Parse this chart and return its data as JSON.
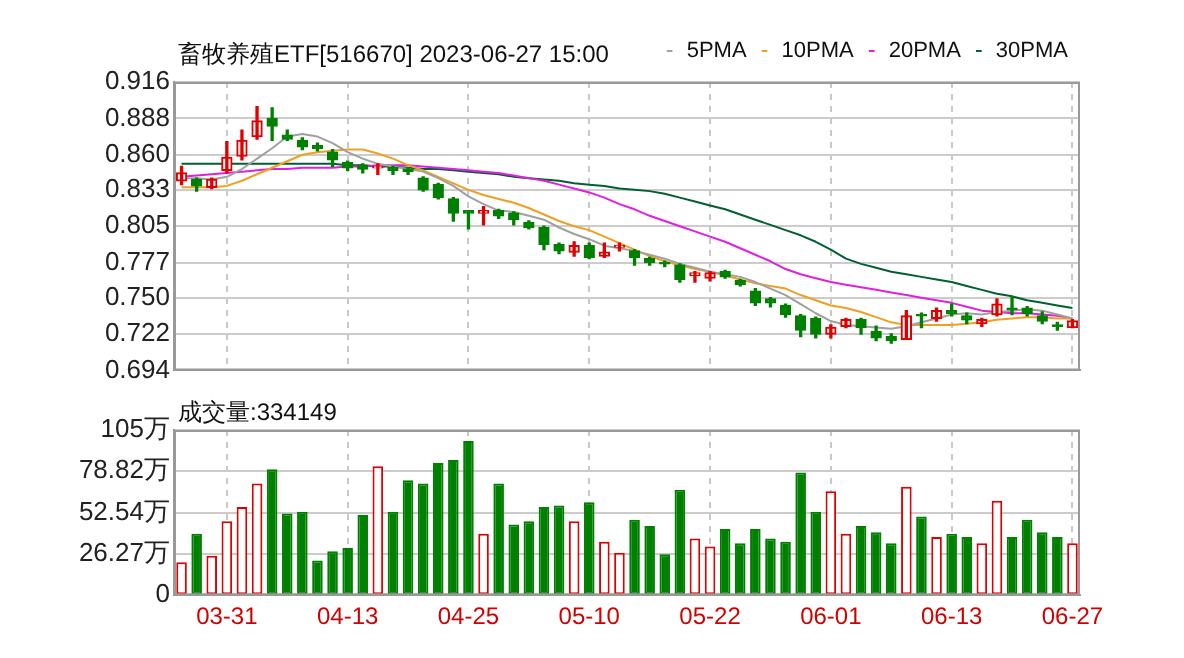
{
  "chart_data": [
    {
      "type": "candlestick",
      "title": "畜牧养殖ETF[516670] 2023-06-27 15:00",
      "categories": [
        null,
        null,
        null,
        null,
        null,
        null,
        null,
        null,
        null,
        null,
        null,
        null,
        null,
        null,
        null,
        null,
        null,
        null,
        null,
        null,
        null,
        null,
        null,
        null,
        null,
        null,
        null,
        null,
        null,
        null,
        null,
        null,
        null,
        null,
        null,
        null,
        null,
        null,
        null,
        null,
        null,
        null,
        null,
        null,
        null,
        null,
        null,
        null,
        null,
        null,
        null,
        null,
        null,
        null,
        null,
        null,
        null,
        null,
        null,
        null
      ],
      "ohlc": [
        [
          0.84,
          0.851,
          0.837,
          0.846
        ],
        [
          0.841,
          0.842,
          0.832,
          0.836
        ],
        [
          0.835,
          0.842,
          0.834,
          0.841
        ],
        [
          0.848,
          0.87,
          0.846,
          0.858
        ],
        [
          0.859,
          0.879,
          0.856,
          0.871
        ],
        [
          0.874,
          0.897,
          0.872,
          0.886
        ],
        [
          0.888,
          0.896,
          0.871,
          0.882
        ],
        [
          0.875,
          0.879,
          0.871,
          0.872
        ],
        [
          0.871,
          0.873,
          0.864,
          0.866
        ],
        [
          0.867,
          0.869,
          0.863,
          0.865
        ],
        [
          0.862,
          0.864,
          0.851,
          0.856
        ],
        [
          0.854,
          0.855,
          0.848,
          0.85
        ],
        [
          0.852,
          0.853,
          0.846,
          0.849
        ],
        [
          0.85,
          0.853,
          0.845,
          0.851
        ],
        [
          0.85,
          0.851,
          0.845,
          0.848
        ],
        [
          0.849,
          0.85,
          0.845,
          0.847
        ],
        [
          0.842,
          0.843,
          0.832,
          0.833
        ],
        [
          0.837,
          0.838,
          0.826,
          0.827
        ],
        [
          0.826,
          0.827,
          0.809,
          0.815
        ],
        [
          0.817,
          0.817,
          0.803,
          0.815
        ],
        [
          0.815,
          0.82,
          0.806,
          0.817
        ],
        [
          0.817,
          0.818,
          0.811,
          0.813
        ],
        [
          0.815,
          0.816,
          0.806,
          0.81
        ],
        [
          0.808,
          0.809,
          0.803,
          0.804
        ],
        [
          0.804,
          0.805,
          0.787,
          0.791
        ],
        [
          0.791,
          0.792,
          0.784,
          0.786
        ],
        [
          0.785,
          0.793,
          0.782,
          0.79
        ],
        [
          0.79,
          0.792,
          0.78,
          0.781
        ],
        [
          0.782,
          0.792,
          0.781,
          0.785
        ],
        [
          0.789,
          0.792,
          0.786,
          0.79
        ],
        [
          0.786,
          0.787,
          0.775,
          0.781
        ],
        [
          0.78,
          0.781,
          0.775,
          0.777
        ],
        [
          0.777,
          0.778,
          0.774,
          0.776
        ],
        [
          0.775,
          0.776,
          0.762,
          0.764
        ],
        [
          0.767,
          0.77,
          0.762,
          0.769
        ],
        [
          0.765,
          0.77,
          0.763,
          0.769
        ],
        [
          0.77,
          0.771,
          0.765,
          0.766
        ],
        [
          0.763,
          0.764,
          0.759,
          0.76
        ],
        [
          0.755,
          0.757,
          0.744,
          0.746
        ],
        [
          0.749,
          0.75,
          0.743,
          0.746
        ],
        [
          0.744,
          0.745,
          0.735,
          0.737
        ],
        [
          0.736,
          0.737,
          0.72,
          0.725
        ],
        [
          0.734,
          0.735,
          0.719,
          0.722
        ],
        [
          0.722,
          0.729,
          0.719,
          0.727
        ],
        [
          0.728,
          0.734,
          0.727,
          0.733
        ],
        [
          0.733,
          0.734,
          0.722,
          0.727
        ],
        [
          0.724,
          0.728,
          0.717,
          0.719
        ],
        [
          0.72,
          0.722,
          0.715,
          0.717
        ],
        [
          0.718,
          0.74,
          0.718,
          0.736
        ],
        [
          0.737,
          0.738,
          0.727,
          0.736
        ],
        [
          0.734,
          0.742,
          0.732,
          0.74
        ],
        [
          0.74,
          0.745,
          0.736,
          0.738
        ],
        [
          0.736,
          0.738,
          0.73,
          0.733
        ],
        [
          0.73,
          0.734,
          0.728,
          0.733
        ],
        [
          0.737,
          0.749,
          0.736,
          0.745
        ],
        [
          0.742,
          0.751,
          0.737,
          0.741
        ],
        [
          0.742,
          0.743,
          0.736,
          0.738
        ],
        [
          0.736,
          0.739,
          0.73,
          0.732
        ],
        [
          0.729,
          0.731,
          0.725,
          0.728
        ],
        [
          0.727,
          0.733,
          0.727,
          0.732
        ]
      ],
      "colors": [
        "#e00000",
        "#008000",
        "#e00000",
        "#e00000",
        "#e00000",
        "#e00000",
        "#008000",
        "#008000",
        "#008000",
        "#008000",
        "#008000",
        "#008000",
        "#008000",
        "#e00000",
        "#008000",
        "#008000",
        "#008000",
        "#008000",
        "#008000",
        "#008000",
        "#e00000",
        "#008000",
        "#008000",
        "#008000",
        "#008000",
        "#008000",
        "#e00000",
        "#008000",
        "#e00000",
        "#e00000",
        "#008000",
        "#008000",
        "#008000",
        "#008000",
        "#e00000",
        "#e00000",
        "#008000",
        "#008000",
        "#008000",
        "#008000",
        "#008000",
        "#008000",
        "#008000",
        "#e00000",
        "#e00000",
        "#008000",
        "#008000",
        "#008000",
        "#e00000",
        "#008000",
        "#e00000",
        "#008000",
        "#008000",
        "#e00000",
        "#e00000",
        "#008000",
        "#008000",
        "#008000",
        "#008000",
        "#e00000"
      ],
      "series": [
        {
          "name": "5PMA",
          "type": "line",
          "color": "#a0a0a0",
          "values": [
            0.842,
            0.842,
            0.841,
            0.843,
            0.849,
            0.857,
            0.865,
            0.874,
            0.876,
            0.874,
            0.869,
            0.862,
            0.857,
            0.853,
            0.851,
            0.849,
            0.847,
            0.842,
            0.836,
            0.828,
            0.822,
            0.817,
            0.816,
            0.813,
            0.81,
            0.804,
            0.799,
            0.795,
            0.79,
            0.788,
            0.786,
            0.783,
            0.78,
            0.776,
            0.773,
            0.77,
            0.768,
            0.766,
            0.762,
            0.757,
            0.752,
            0.745,
            0.738,
            0.732,
            0.729,
            0.728,
            0.727,
            0.726,
            0.728,
            0.731,
            0.734,
            0.737,
            0.738,
            0.737,
            0.739,
            0.74,
            0.741,
            0.74,
            0.737,
            0.734
          ]
        },
        {
          "name": "10PMA",
          "type": "line",
          "color": "#f0a020",
          "values": [
            0.835,
            0.835,
            0.835,
            0.836,
            0.84,
            0.845,
            0.85,
            0.855,
            0.86,
            0.862,
            0.863,
            0.864,
            0.864,
            0.861,
            0.857,
            0.852,
            0.848,
            0.843,
            0.838,
            0.833,
            0.829,
            0.826,
            0.823,
            0.819,
            0.814,
            0.809,
            0.805,
            0.802,
            0.797,
            0.792,
            0.787,
            0.782,
            0.778,
            0.775,
            0.772,
            0.77,
            0.767,
            0.764,
            0.761,
            0.759,
            0.757,
            0.752,
            0.748,
            0.744,
            0.742,
            0.739,
            0.735,
            0.731,
            0.729,
            0.729,
            0.729,
            0.729,
            0.73,
            0.731,
            0.733,
            0.734,
            0.735,
            0.735,
            0.734,
            0.734
          ]
        },
        {
          "name": "20PMA",
          "type": "line",
          "color": "#e020e0",
          "values": [
            0.843,
            0.844,
            0.845,
            0.846,
            0.847,
            0.848,
            0.849,
            0.849,
            0.85,
            0.85,
            0.85,
            0.851,
            0.851,
            0.852,
            0.852,
            0.852,
            0.851,
            0.85,
            0.849,
            0.848,
            0.847,
            0.846,
            0.844,
            0.842,
            0.84,
            0.837,
            0.834,
            0.831,
            0.827,
            0.822,
            0.818,
            0.813,
            0.809,
            0.805,
            0.801,
            0.797,
            0.793,
            0.788,
            0.783,
            0.778,
            0.772,
            0.768,
            0.765,
            0.762,
            0.76,
            0.758,
            0.756,
            0.754,
            0.752,
            0.75,
            0.748,
            0.746,
            0.743,
            0.74,
            0.739,
            0.738,
            0.738,
            0.737,
            0.736,
            0.734
          ]
        },
        {
          "name": "30PMA",
          "type": "line",
          "color": "#006030",
          "values": [
            0.853,
            0.853,
            0.853,
            0.853,
            0.853,
            0.853,
            0.853,
            0.853,
            0.853,
            0.853,
            0.853,
            0.852,
            0.852,
            0.851,
            0.851,
            0.85,
            0.849,
            0.849,
            0.848,
            0.847,
            0.846,
            0.845,
            0.843,
            0.842,
            0.841,
            0.84,
            0.838,
            0.837,
            0.836,
            0.834,
            0.833,
            0.832,
            0.83,
            0.827,
            0.824,
            0.821,
            0.818,
            0.814,
            0.81,
            0.806,
            0.802,
            0.798,
            0.793,
            0.787,
            0.78,
            0.776,
            0.773,
            0.77,
            0.768,
            0.766,
            0.764,
            0.762,
            0.759,
            0.756,
            0.753,
            0.751,
            0.748,
            0.746,
            0.744,
            0.742
          ]
        }
      ],
      "ylim": [
        0.694,
        0.916
      ],
      "yticks": [
        0.694,
        0.722,
        {
          "value": 0.75,
          "label": "0.750"
        },
        0.777,
        0.805,
        0.833,
        {
          "value": 0.86,
          "label": "0.860"
        },
        0.888,
        0.916
      ],
      "grid": true,
      "legend": "top right",
      "tick_labels": "y",
      "marker": "none"
    },
    {
      "type": "bar",
      "title": "成交量:334149",
      "categories": [
        null,
        null,
        null,
        "03-31",
        null,
        null,
        null,
        null,
        null,
        null,
        null,
        "04-13",
        null,
        null,
        null,
        null,
        null,
        null,
        null,
        "04-25",
        null,
        null,
        null,
        null,
        null,
        null,
        null,
        "05-10",
        null,
        null,
        null,
        null,
        null,
        null,
        null,
        "05-22",
        null,
        null,
        null,
        null,
        null,
        null,
        null,
        "06-01",
        null,
        null,
        null,
        null,
        null,
        null,
        null,
        "06-13",
        null,
        null,
        null,
        null,
        null,
        null,
        null,
        "06-27"
      ],
      "values": [
        21,
        39,
        25,
        47,
        56,
        71,
        80,
        52,
        53,
        22,
        28,
        30,
        51,
        82,
        53,
        73,
        71,
        84,
        86,
        98,
        39,
        71,
        45,
        47,
        56,
        57,
        47,
        59,
        34,
        27,
        48,
        44,
        26,
        67,
        36,
        31,
        42,
        33,
        42,
        36,
        34,
        78,
        53,
        66,
        39,
        44,
        40,
        33,
        69,
        50,
        37,
        39,
        37,
        33,
        60,
        37,
        48,
        40,
        37,
        33
      ],
      "colors": [
        "#e00000",
        "#008000",
        "#e00000",
        "#e00000",
        "#e00000",
        "#e00000",
        "#008000",
        "#008000",
        "#008000",
        "#008000",
        "#008000",
        "#008000",
        "#008000",
        "#e00000",
        "#008000",
        "#008000",
        "#008000",
        "#008000",
        "#008000",
        "#008000",
        "#e00000",
        "#008000",
        "#008000",
        "#008000",
        "#008000",
        "#008000",
        "#e00000",
        "#008000",
        "#e00000",
        "#e00000",
        "#008000",
        "#008000",
        "#008000",
        "#008000",
        "#e00000",
        "#e00000",
        "#008000",
        "#008000",
        "#008000",
        "#008000",
        "#008000",
        "#008000",
        "#008000",
        "#e00000",
        "#e00000",
        "#008000",
        "#008000",
        "#008000",
        "#e00000",
        "#008000",
        "#e00000",
        "#008000",
        "#008000",
        "#e00000",
        "#e00000",
        "#008000",
        "#008000",
        "#008000",
        "#008000",
        "#e00000"
      ],
      "ylim": [
        0,
        105
      ],
      "yticks": [
        0,
        {
          "value": 26.27,
          "label": "26.27万"
        },
        {
          "value": 52.54,
          "label": "52.54万"
        },
        {
          "value": 78.82,
          "label": "78.82万"
        },
        {
          "value": 105,
          "label": "105万"
        }
      ],
      "grid": true
    }
  ]
}
